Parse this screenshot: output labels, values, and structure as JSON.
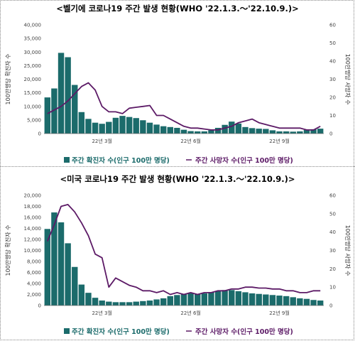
{
  "chart_data": [
    {
      "type": "bar+line",
      "title": "<벨기에 코로나19 주간 발생 현황(WHO '22.1.3.～'22.10.9.)>",
      "ylabel_left": "100만명당 확진자 수",
      "ylabel_right": "100만명당 사망자 수",
      "ylim_left": [
        0,
        40000
      ],
      "ylim_right": [
        0,
        60
      ],
      "yticks_left": [
        "0",
        "5,000",
        "10,000",
        "15,000",
        "20,000",
        "25,000",
        "30,000",
        "35,000",
        "40,000"
      ],
      "yticks_right": [
        "0",
        "10",
        "20",
        "30",
        "40",
        "50",
        "60"
      ],
      "xticks": [
        {
          "index": 8,
          "label": "22년 3월"
        },
        {
          "index": 21,
          "label": "22년 6월"
        },
        {
          "index": 34,
          "label": "22년 9월"
        }
      ],
      "series": [
        {
          "name": "주간 확진자 수(인구 100만 명당)",
          "kind": "bar",
          "color": "#1b6b6b",
          "values": [
            13300,
            16600,
            29700,
            28100,
            17900,
            7900,
            5400,
            4000,
            3600,
            4300,
            5800,
            6500,
            6100,
            5700,
            4900,
            4000,
            3300,
            2700,
            2400,
            2100,
            1400,
            900,
            800,
            800,
            1200,
            2100,
            3200,
            4400,
            3700,
            2400,
            2000,
            1800,
            1700,
            1200,
            800,
            800,
            700,
            800,
            1300,
            1600,
            1800
          ]
        },
        {
          "name": "주간 사망자 수(인구 100만 명당)",
          "kind": "line",
          "color": "#5c1a66",
          "values": [
            11,
            13,
            15,
            18,
            22,
            26,
            28,
            24,
            15,
            12,
            12,
            11,
            14,
            14.5,
            15,
            15.5,
            10,
            10,
            8,
            6,
            4,
            3,
            3,
            2.5,
            2,
            2,
            3,
            4,
            6,
            7,
            8,
            6,
            5,
            4,
            3,
            3,
            3,
            3,
            2,
            2,
            4
          ]
        }
      ]
    },
    {
      "type": "bar+line",
      "title": "<미국 코로나19 주간 발생 현황(WHO '22.1.3.～'22.10.9.)>",
      "ylabel_left": "100만명당 확진자 수",
      "ylabel_right": "100만명당 사망자 수",
      "ylim_left": [
        0,
        20000
      ],
      "ylim_right": [
        0,
        60
      ],
      "yticks_left": [
        "0",
        "2,000",
        "4,000",
        "6,000",
        "8,000",
        "10,000",
        "12,000",
        "14,000",
        "16,000",
        "18,000",
        "20,000"
      ],
      "yticks_right": [
        "0",
        "10",
        "20",
        "30",
        "40",
        "50",
        "60"
      ],
      "xticks": [
        {
          "index": 8,
          "label": "22년 3월"
        },
        {
          "index": 21,
          "label": "22년 6월"
        },
        {
          "index": 34,
          "label": "22년 9월"
        }
      ],
      "series": [
        {
          "name": "주간 확진자 수(인구 100만 명당)",
          "kind": "bar",
          "color": "#1b6b6b",
          "values": [
            13900,
            16900,
            15100,
            11300,
            7000,
            3800,
            2300,
            1400,
            900,
            700,
            600,
            600,
            600,
            700,
            800,
            900,
            1100,
            1300,
            1700,
            1900,
            2100,
            2200,
            2100,
            2200,
            2400,
            2600,
            2800,
            2800,
            2600,
            2400,
            2200,
            2100,
            2000,
            1900,
            1800,
            1700,
            1500,
            1300,
            1200,
            1000,
            900
          ]
        },
        {
          "name": "주간 사망자 수(인구 100만 명당)",
          "kind": "line",
          "color": "#5c1a66",
          "values": [
            35,
            44,
            54,
            55,
            51,
            45,
            38,
            28,
            26,
            10,
            15,
            13,
            11,
            10,
            8,
            8,
            7,
            8,
            6,
            7,
            6,
            7,
            6,
            7,
            7,
            8,
            8,
            9,
            9,
            10,
            10,
            9.5,
            9.5,
            9,
            9,
            8,
            8,
            7,
            7,
            8,
            8
          ]
        }
      ]
    }
  ]
}
